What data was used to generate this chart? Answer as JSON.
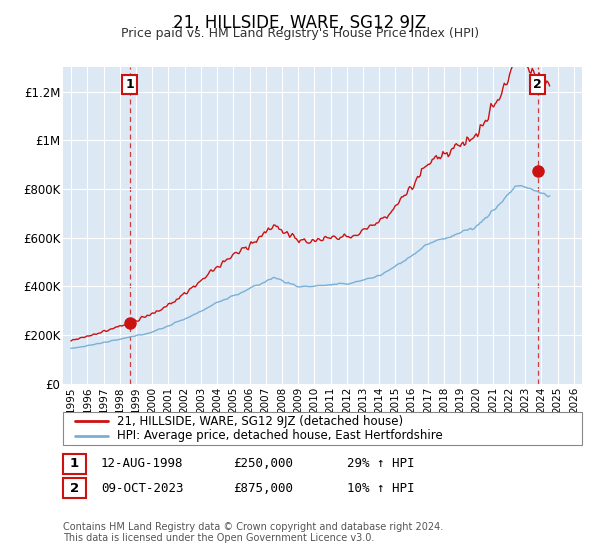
{
  "title": "21, HILLSIDE, WARE, SG12 9JZ",
  "subtitle": "Price paid vs. HM Land Registry's House Price Index (HPI)",
  "xlim": [
    1994.5,
    2026.5
  ],
  "ylim": [
    0,
    1300000
  ],
  "yticks": [
    0,
    200000,
    400000,
    600000,
    800000,
    1000000,
    1200000
  ],
  "ytick_labels": [
    "£0",
    "£200K",
    "£400K",
    "£600K",
    "£800K",
    "£1M",
    "£1.2M"
  ],
  "xticks": [
    1995,
    1996,
    1997,
    1998,
    1999,
    2000,
    2001,
    2002,
    2003,
    2004,
    2005,
    2006,
    2007,
    2008,
    2009,
    2010,
    2011,
    2012,
    2013,
    2014,
    2015,
    2016,
    2017,
    2018,
    2019,
    2020,
    2021,
    2022,
    2023,
    2024,
    2025,
    2026
  ],
  "bg_color": "#dce9f5",
  "grid_color": "#ffffff",
  "hpi_color": "#7ab0d4",
  "price_color": "#cc1111",
  "sale1_x": 1998.617,
  "sale1_y": 250000,
  "sale1_label": "1",
  "sale1_date": "12-AUG-1998",
  "sale1_price": "£250,000",
  "sale1_hpi": "29% ↑ HPI",
  "sale2_x": 2023.775,
  "sale2_y": 875000,
  "sale2_label": "2",
  "sale2_date": "09-OCT-2023",
  "sale2_price": "£875,000",
  "sale2_hpi": "10% ↑ HPI",
  "legend_line1": "21, HILLSIDE, WARE, SG12 9JZ (detached house)",
  "legend_line2": "HPI: Average price, detached house, East Hertfordshire",
  "footnote1": "Contains HM Land Registry data © Crown copyright and database right 2024.",
  "footnote2": "This data is licensed under the Open Government Licence v3.0.",
  "sale_marker_size": 8
}
